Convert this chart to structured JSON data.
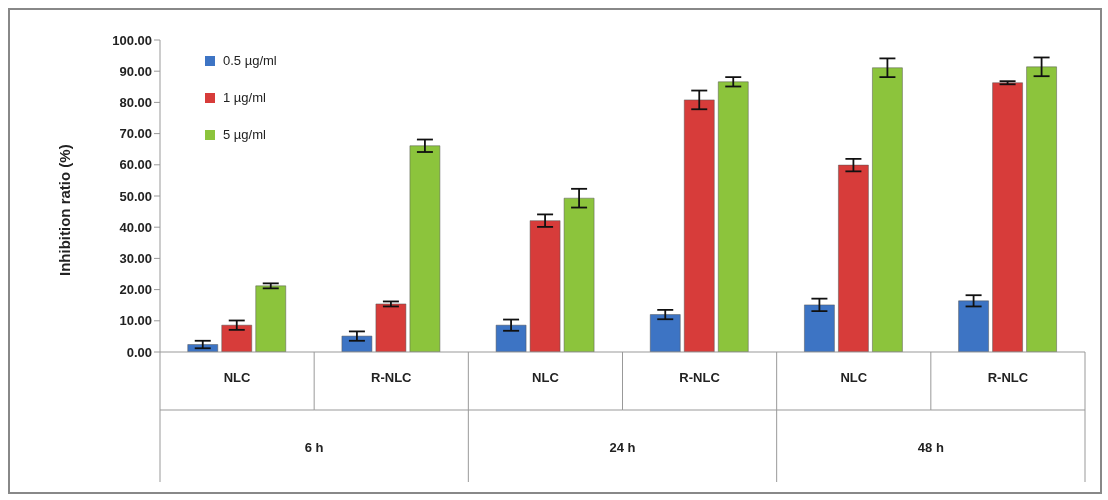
{
  "chart_data": {
    "type": "bar",
    "ylabel": "Inhibition ratio (%)",
    "categories": [
      "NLC",
      "R-NLC",
      "NLC",
      "R-NLC",
      "NLC",
      "R-NLC"
    ],
    "annotations": [
      "6 h",
      "24 h",
      "48 h"
    ],
    "series": [
      {
        "name": "0.5 µg/ml",
        "color": "#3d74c4",
        "values": [
          2.4,
          5.1,
          8.6,
          12.0,
          15.1,
          16.4
        ],
        "errors": [
          1.2,
          1.5,
          1.8,
          1.5,
          2.0,
          1.8
        ]
      },
      {
        "name": "1 µg/ml",
        "color": "#d73c3a",
        "values": [
          8.6,
          15.4,
          42.1,
          80.8,
          59.9,
          86.3
        ],
        "errors": [
          1.5,
          0.8,
          2.0,
          3.0,
          2.0,
          0.5
        ]
      },
      {
        "name": "5 µg/ml",
        "color": "#8cc43c",
        "values": [
          21.2,
          66.1,
          49.3,
          86.6,
          91.1,
          91.4
        ],
        "errors": [
          0.8,
          2.0,
          3.0,
          1.5,
          3.0,
          3.0
        ]
      }
    ],
    "ylim": [
      0,
      100
    ],
    "yticks": [
      {
        "value": 0,
        "label": "0.00"
      },
      {
        "value": 10,
        "label": "10.00"
      },
      {
        "value": 20,
        "label": "20.00"
      },
      {
        "value": 30,
        "label": "30.00"
      },
      {
        "value": 40,
        "label": "40.00"
      },
      {
        "value": 50,
        "label": "50.00"
      },
      {
        "value": 60,
        "label": "60.00"
      },
      {
        "value": 70,
        "label": "70.00"
      },
      {
        "value": 80,
        "label": "80.00"
      },
      {
        "value": 90,
        "label": "90.00"
      },
      {
        "value": 100,
        "label": "100.00"
      }
    ],
    "grid": false,
    "legend": "top left"
  }
}
